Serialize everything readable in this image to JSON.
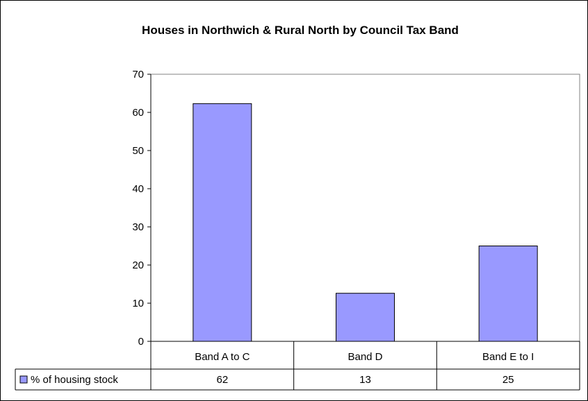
{
  "chart_data": {
    "type": "bar",
    "title": "Houses in Northwich & Rural North by Council Tax Band",
    "categories": [
      "Band A to C",
      "Band D",
      "Band E to I"
    ],
    "series": [
      {
        "name": "% of housing stock",
        "values": [
          62,
          13,
          25
        ],
        "color": "#9999ff"
      }
    ],
    "ylim": [
      0,
      70
    ],
    "yticks": [
      0,
      10,
      20,
      30,
      40,
      50,
      60,
      70
    ],
    "grid": false,
    "legend": "data-table",
    "bar_values": [
      62.3,
      12.6,
      25
    ]
  }
}
